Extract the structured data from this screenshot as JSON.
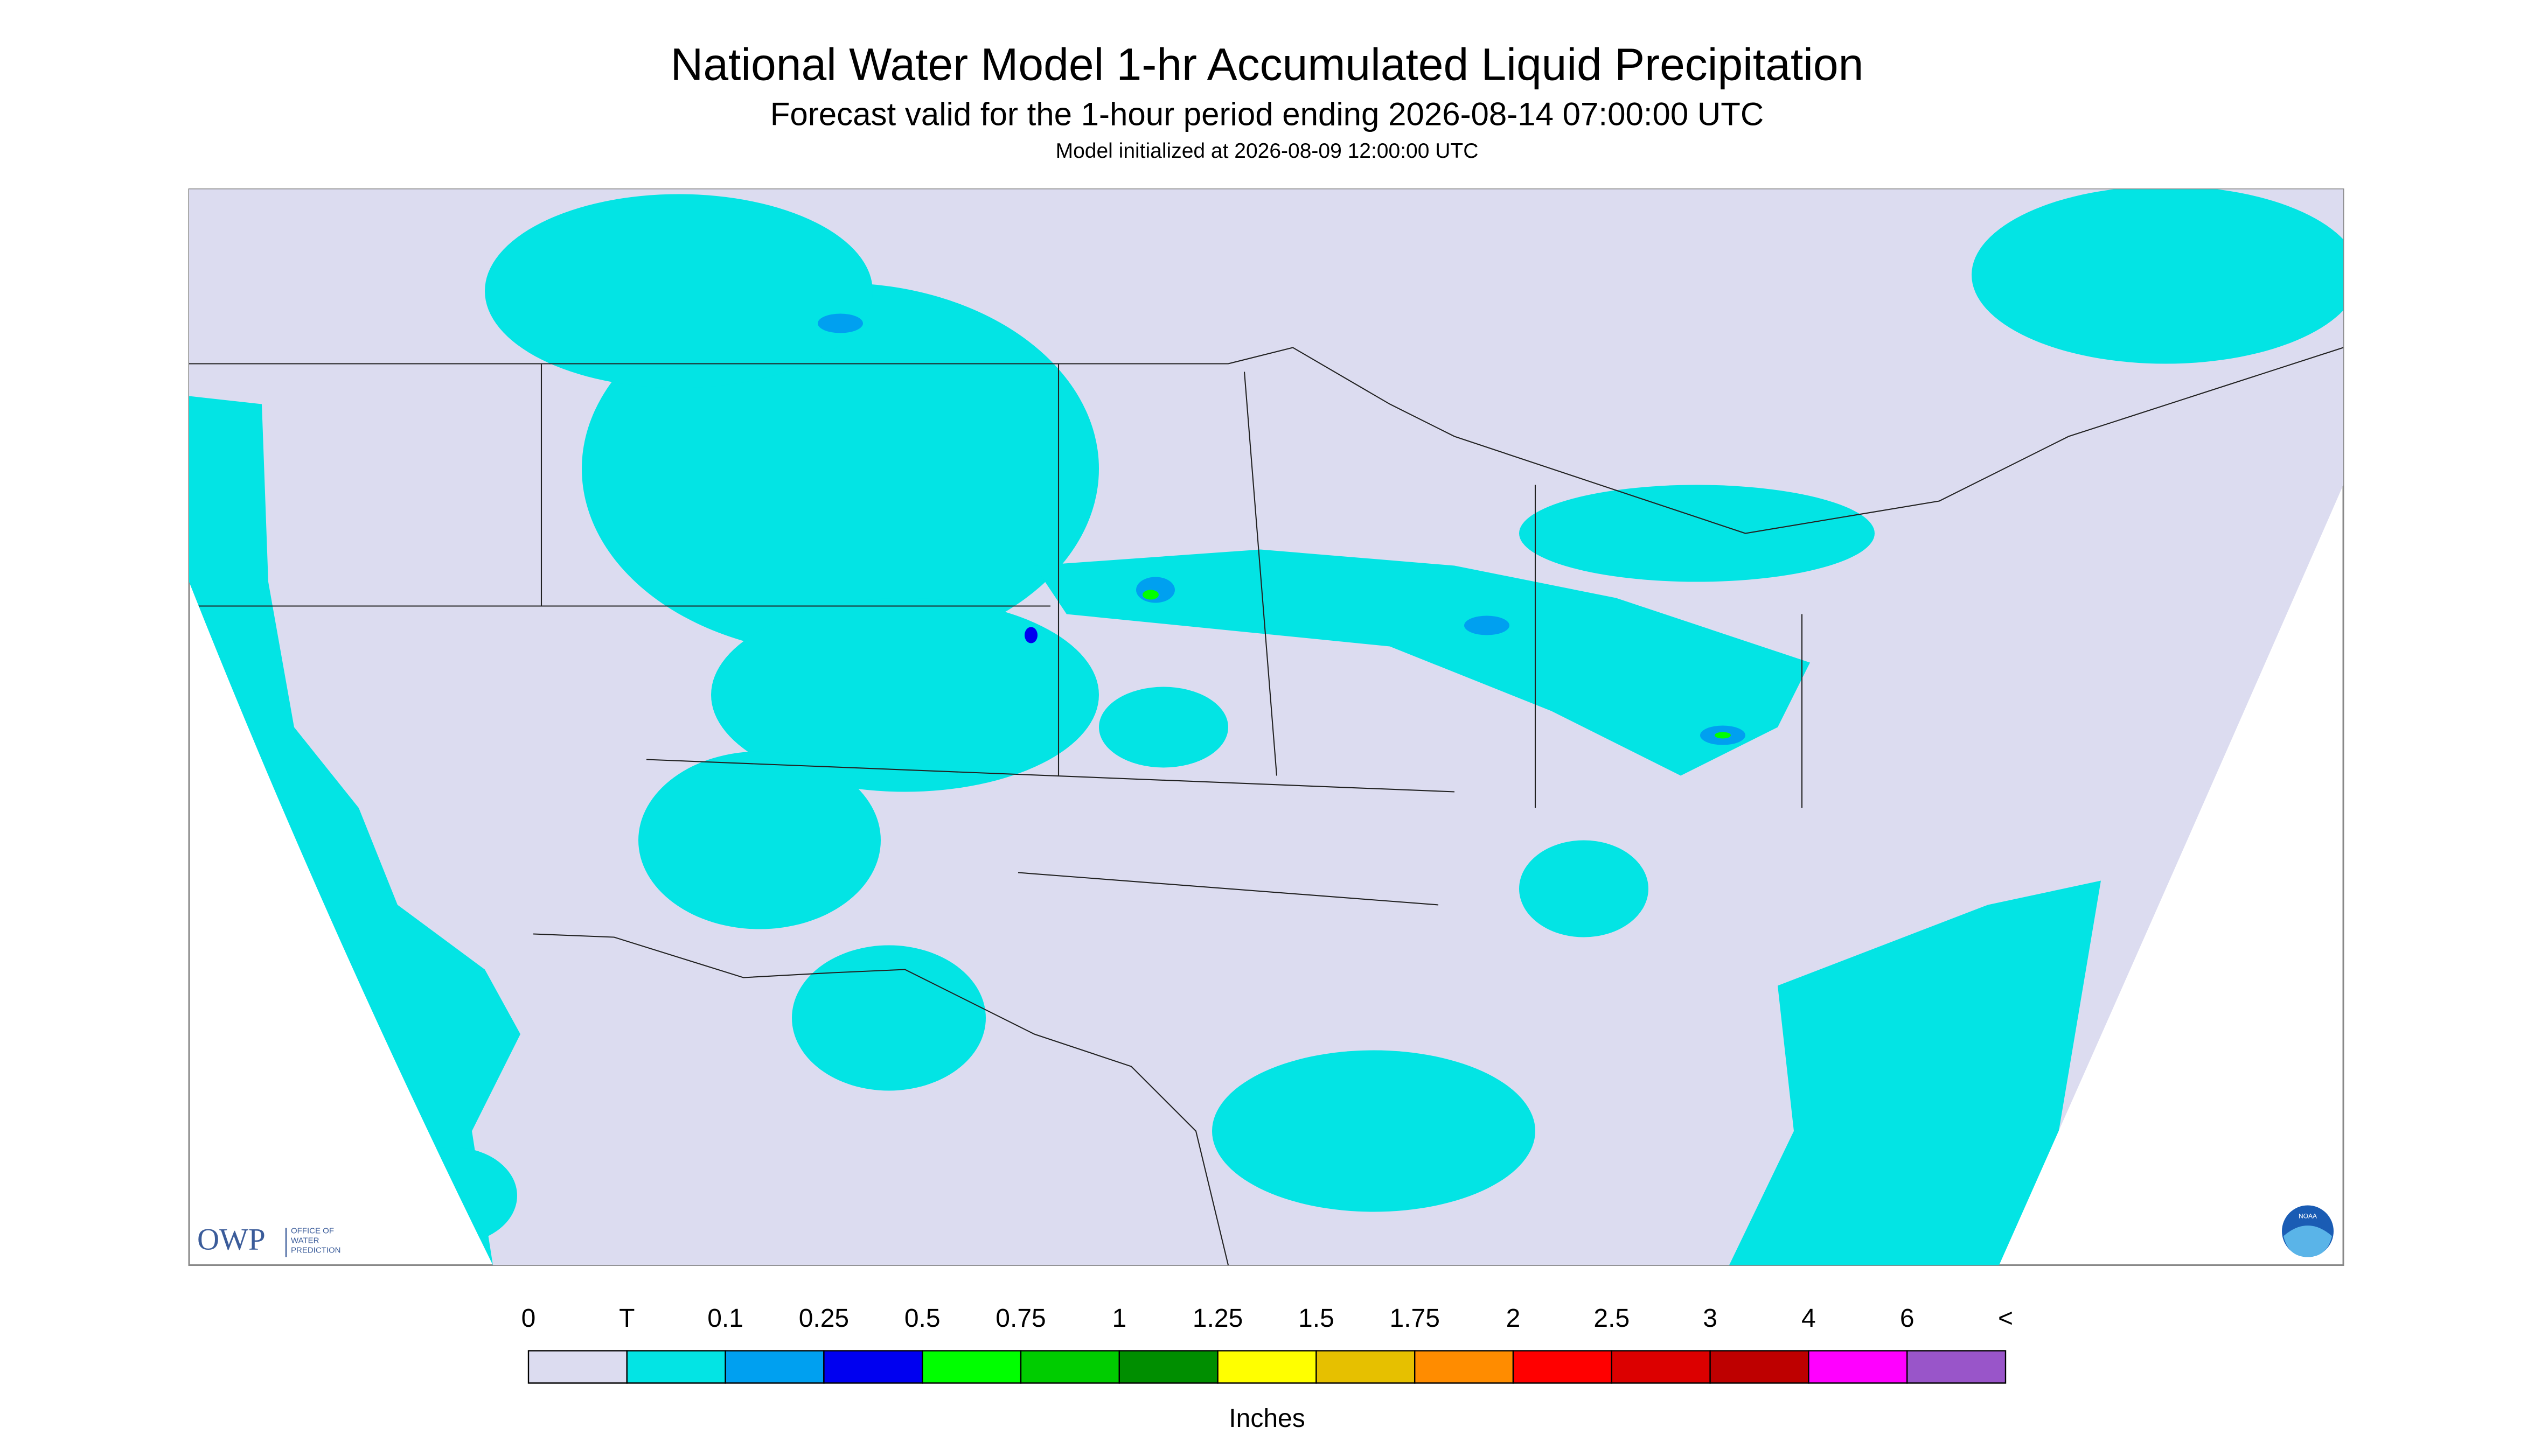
{
  "header": {
    "title": "National Water Model 1-hr Accumulated Liquid Precipitation",
    "subtitle": "Forecast valid for the 1-hour period ending 2026-08-14 07:00:00 UTC",
    "note": "Model initialized at 2026-08-09 12:00:00 UTC"
  },
  "legend": {
    "labels": [
      "0",
      "T",
      "0.1",
      "0.25",
      "0.5",
      "0.75",
      "1",
      "1.25",
      "1.5",
      "1.75",
      "2",
      "2.5",
      "3",
      "4",
      "6",
      "<"
    ],
    "colors": [
      "#dcdcf0",
      "#03e4e4",
      "#00a0f0",
      "#0000f0",
      "#00ff00",
      "#00cc00",
      "#008e00",
      "#ffff00",
      "#e6c000",
      "#ff8c00",
      "#ff0000",
      "#dc0000",
      "#be0000",
      "#ff00ff",
      "#9955c9"
    ],
    "unit": "Inches"
  },
  "logos": {
    "owp": "OWP",
    "owp_line1": "OFFICE OF",
    "owp_line2": "WATER",
    "owp_line3": "PREDICTION",
    "noaa": "NOAA"
  }
}
